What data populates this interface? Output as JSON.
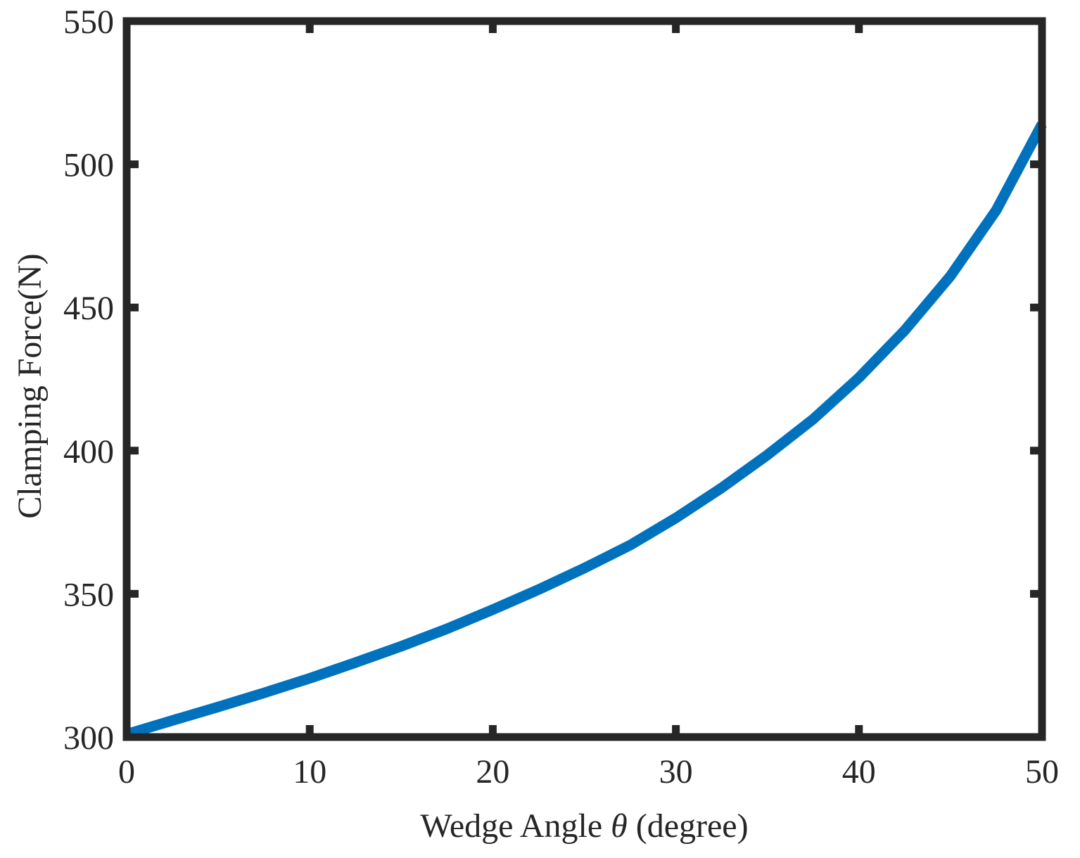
{
  "chart_data": {
    "type": "line",
    "title": "",
    "xlabel": "Wedge Angle θ (degree)",
    "xlabel_parts": {
      "before": "Wedge Angle ",
      "symbol": "θ",
      "after": " (degree)"
    },
    "ylabel": "Clamping Force(N)",
    "xlim": [
      0,
      50
    ],
    "ylim": [
      300,
      550
    ],
    "xticks": [
      0,
      10,
      20,
      30,
      40,
      50
    ],
    "yticks": [
      300,
      350,
      400,
      450,
      500,
      550
    ],
    "xtick_labels": [
      "0",
      "10",
      "20",
      "30",
      "40",
      "50"
    ],
    "ytick_labels": [
      "300",
      "350",
      "400",
      "450",
      "500",
      "550"
    ],
    "grid": false,
    "box": true,
    "series": [
      {
        "color": "#0072BD",
        "x": [
          0,
          2.5,
          5,
          7.5,
          10,
          12.5,
          15,
          17.5,
          20,
          22.5,
          25,
          27.5,
          30,
          32.5,
          35,
          37.5,
          40,
          42.5,
          45,
          47.5,
          50
        ],
        "y": [
          301,
          305.8,
          310.5,
          315.4,
          320.5,
          326,
          331.7,
          337.8,
          344.5,
          351.5,
          359,
          367,
          376.5,
          387,
          398.5,
          411,
          425.5,
          442,
          461,
          484,
          514
        ]
      }
    ]
  }
}
